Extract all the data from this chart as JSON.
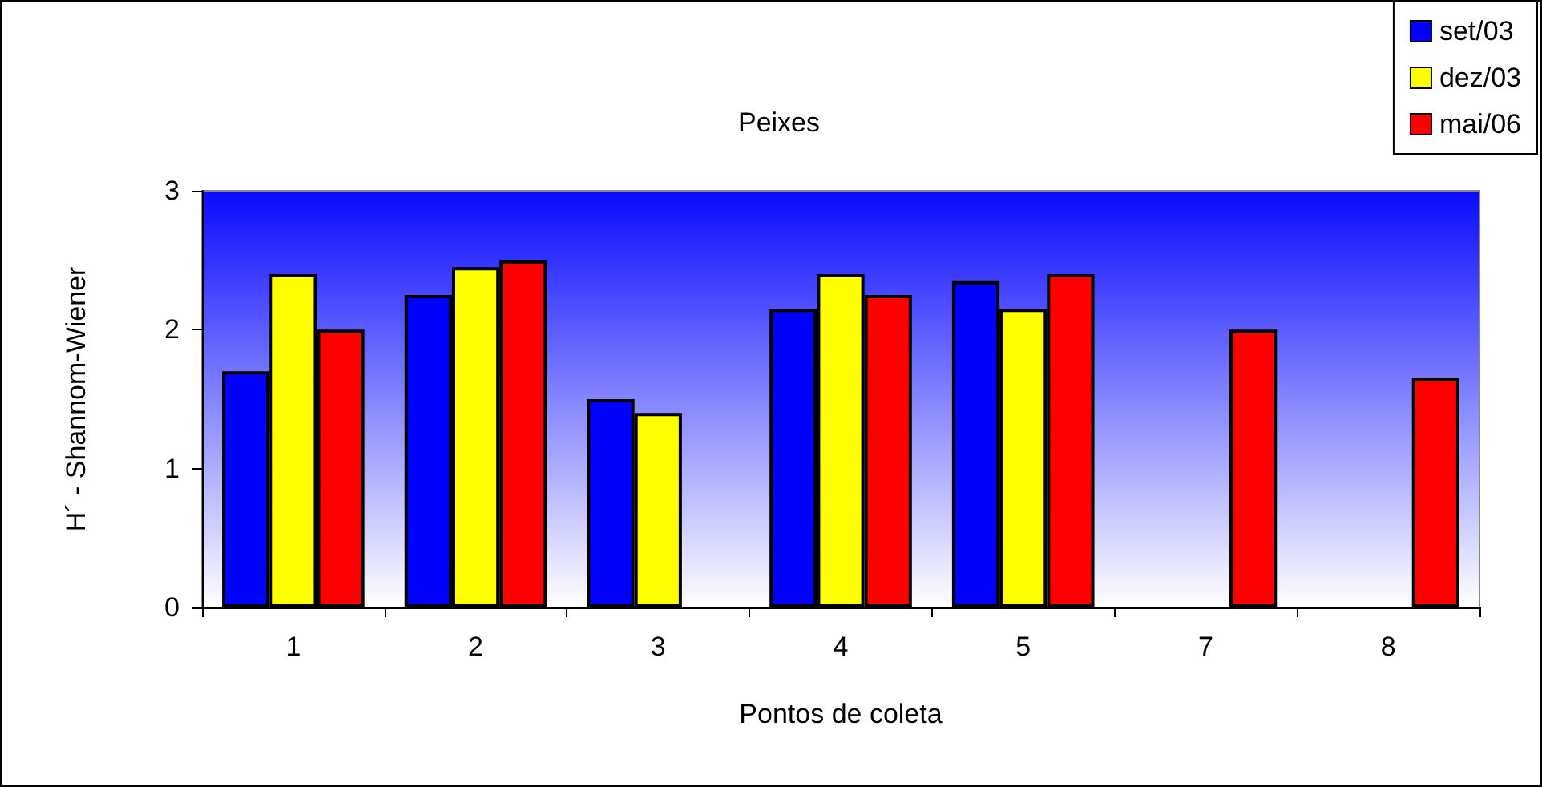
{
  "chart_data": {
    "type": "bar",
    "title": "Peixes",
    "xlabel": "Pontos de coleta",
    "ylabel": "H´ - Shannom-Wiener",
    "categories": [
      "1",
      "2",
      "3",
      "4",
      "5",
      "7",
      "8"
    ],
    "series": [
      {
        "name": "set/03",
        "color": "#0000ff",
        "values": [
          1.7,
          2.25,
          1.5,
          2.15,
          2.35,
          null,
          null
        ]
      },
      {
        "name": "dez/03",
        "color": "#ffff00",
        "values": [
          2.4,
          2.45,
          1.4,
          2.4,
          2.15,
          null,
          null
        ]
      },
      {
        "name": "mai/06",
        "color": "#ff0000",
        "values": [
          2.0,
          2.5,
          null,
          2.25,
          2.4,
          2.0,
          1.65
        ]
      }
    ],
    "ylim": [
      0,
      3
    ],
    "yticks": [
      0,
      1,
      2,
      3
    ],
    "grid": false,
    "legend": "top right"
  }
}
